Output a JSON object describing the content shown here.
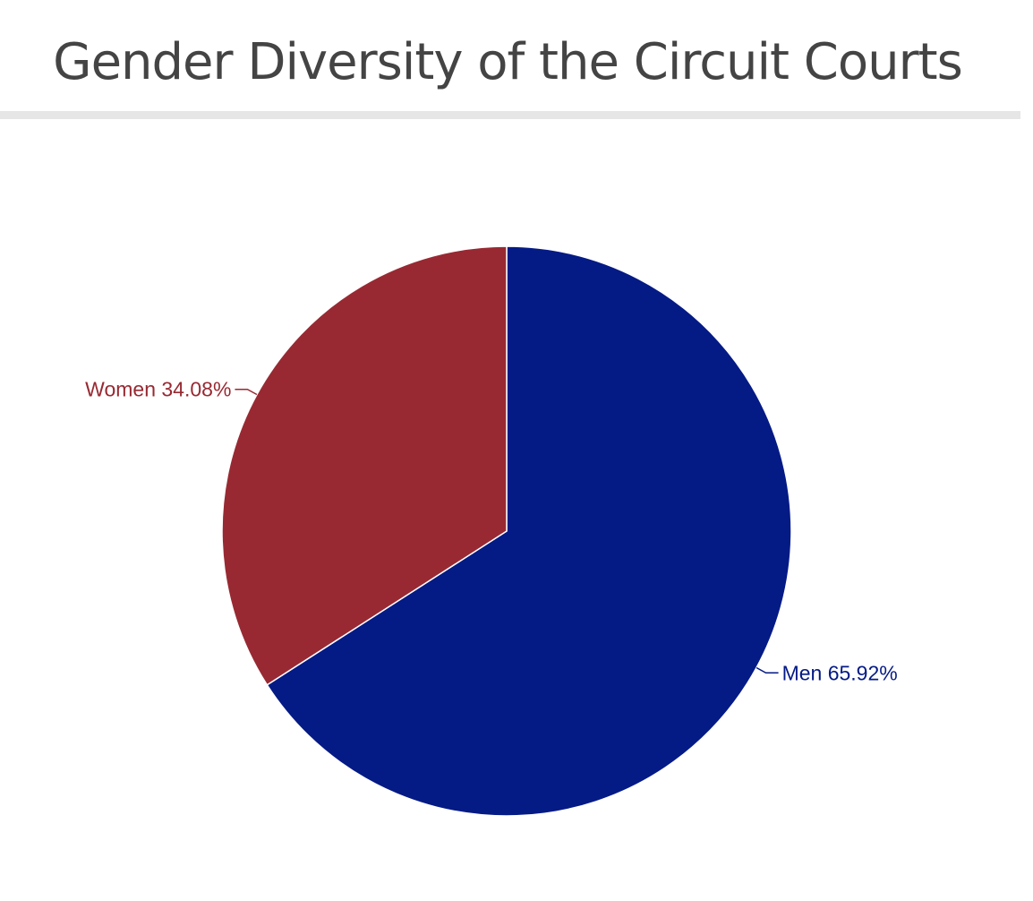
{
  "title": "Gender Diversity of the Circuit Courts",
  "chart_data": {
    "type": "pie",
    "title": "Gender Diversity of the Circuit Courts",
    "start_angle_deg": 0,
    "direction": "clockwise",
    "slices": [
      {
        "name": "Men",
        "value": 65.92,
        "label": "Men 65.92%",
        "color": "#041a85"
      },
      {
        "name": "Women",
        "value": 34.08,
        "label": "Women 34.08%",
        "color": "#982932"
      }
    ],
    "legend": "none",
    "label_style": "outside-with-leader-lines"
  }
}
